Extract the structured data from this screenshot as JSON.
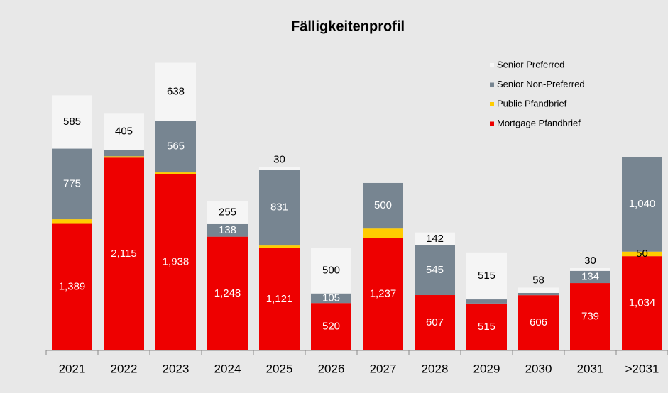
{
  "chart_data": {
    "type": "stacked_bar",
    "title": "Fälligkeitenprofil",
    "categories": [
      "2021",
      "2022",
      "2023",
      "2024",
      "2025",
      "2026",
      "2027",
      "2028",
      "2029",
      "2030",
      "2031",
      ">2031"
    ],
    "series": [
      {
        "name": "Mortgage Pfandbrief",
        "color": "#ee0000",
        "label_color": "#ffffff",
        "values": [
          1389,
          2115,
          1938,
          1248,
          1121,
          520,
          1237,
          607,
          515,
          606,
          739,
          1034
        ],
        "value_labels": [
          "1,389",
          "2,115",
          "1,938",
          "1,248",
          "1,121",
          "520",
          "1,237",
          "607",
          "515",
          "606",
          "739",
          "1,034"
        ]
      },
      {
        "name": "Public Pfandbrief",
        "color": "#ffcc00",
        "label_color": "#000000",
        "values": [
          50,
          15,
          15,
          0,
          30,
          0,
          100,
          0,
          0,
          0,
          0,
          50
        ],
        "value_labels": [
          null,
          null,
          null,
          null,
          null,
          null,
          null,
          null,
          null,
          null,
          null,
          "50"
        ]
      },
      {
        "name": "Senior Non-Preferred",
        "color": "#778591",
        "label_color": "#ffffff",
        "values": [
          775,
          70,
          565,
          138,
          831,
          105,
          500,
          545,
          45,
          25,
          134,
          1040
        ],
        "value_labels": [
          "775",
          null,
          "565",
          "138",
          "831",
          "105",
          "500",
          "545",
          null,
          null,
          "134",
          "1,040"
        ]
      },
      {
        "name": "Senior Preferred",
        "color": "#f5f5f5",
        "label_color": "#000000",
        "values": [
          585,
          405,
          638,
          255,
          30,
          500,
          0,
          142,
          515,
          58,
          30,
          0
        ],
        "value_labels": [
          "585",
          "405",
          "638",
          "255",
          "30",
          "500",
          null,
          "142",
          "515",
          "58",
          "30",
          null
        ]
      }
    ],
    "ylim": [
      0,
      3300
    ],
    "legend": "upper right"
  }
}
